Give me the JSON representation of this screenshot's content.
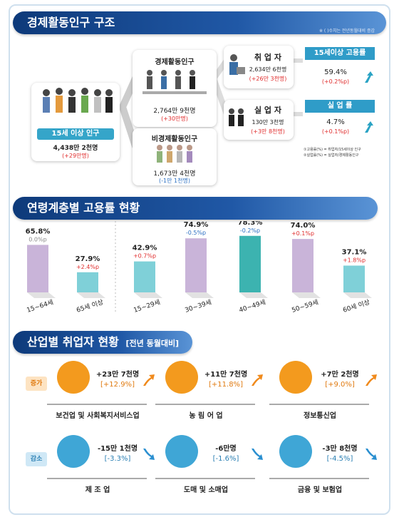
{
  "section1": {
    "title": "경제활동인구 구조",
    "note": "※ ( )수치는 전년동월대비 증감",
    "pop15": {
      "label": "15세 이상 인구",
      "value": "4,438만 2천명",
      "change": "(+29만명)"
    },
    "econ_active": {
      "label": "경제활동인구",
      "value": "2,764만 9천명",
      "change": "(+30만명)"
    },
    "non_active": {
      "label": "비경제활동인구",
      "value": "1,673만 4천명",
      "change": "(-1만 1천명)"
    },
    "employed": {
      "label": "취 업 자",
      "value": "2,634만 6천명",
      "change": "(+26만 3천명)"
    },
    "unemployed": {
      "label": "실 업 자",
      "value": "130만 3천명",
      "change": "(+3만 8천명)"
    },
    "emp_rate": {
      "label": "15세이상 고용률",
      "value": "59.4%",
      "change": "(+0.2%p)"
    },
    "unemp_rate": {
      "label": "실 업 률",
      "value": "4.7%",
      "change": "(+0.1%p)"
    },
    "formula1": "①고용률(%) = 취업자/15세이상 인구",
    "formula2": "②실업률(%) = 실업자/경제활동인구"
  },
  "section2": {
    "title": "연령계층별 고용률 현황"
  },
  "chart_data": {
    "type": "bar",
    "categories": [
      "15~64세",
      "65세 이상",
      "15~29세",
      "30~39세",
      "40~49세",
      "50~59세",
      "60세 이상"
    ],
    "values": [
      65.8,
      27.9,
      42.9,
      74.9,
      78.3,
      74.0,
      37.1
    ],
    "value_labels": [
      "65.8%",
      "27.9%",
      "42.9%",
      "74.9%",
      "78.3%",
      "74.0%",
      "37.1%"
    ],
    "changes": [
      "0.0%p",
      "+2.4%p",
      "+0.7%p",
      "-0.5%p",
      "-0.2%p",
      "+0.1%p",
      "+1.8%p"
    ],
    "change_colors": [
      "#888888",
      "#e02d2d",
      "#e02d2d",
      "#2b6fc2",
      "#2b6fc2",
      "#e02d2d",
      "#e02d2d"
    ],
    "bar_colors": [
      "#c9b4d9",
      "#7fd0d8",
      "#7fd0d8",
      "#c9b4d9",
      "#3cb3b0",
      "#c9b4d9",
      "#7fd0d8"
    ],
    "ylim": [
      0,
      100
    ]
  },
  "section3": {
    "title": "산업별 취업자 현황",
    "subtitle": "[전년 동월대비]",
    "increase_tag": "증가",
    "decrease_tag": "감소",
    "increase": [
      {
        "name": "보건업 및 사회복지서비스업",
        "value": "+23만 7천명",
        "pct": "[+12.9%]"
      },
      {
        "name": "농 림 어 업",
        "value": "+11만 7천명",
        "pct": "[+11.8%]"
      },
      {
        "name": "정보통신업",
        "value": "+7만 2천명",
        "pct": "[+9.0%]"
      }
    ],
    "decrease": [
      {
        "name": "제 조 업",
        "value": "-15만 1천명",
        "pct": "[-3.3%]"
      },
      {
        "name": "도매 및 소매업",
        "value": "-6만명",
        "pct": "[-1.6%]"
      },
      {
        "name": "금융 및 보험업",
        "value": "-3만 8천명",
        "pct": "[-4.5%]"
      }
    ],
    "colors": {
      "increase": "#f39a1e",
      "decrease": "#3fa6d6"
    }
  }
}
